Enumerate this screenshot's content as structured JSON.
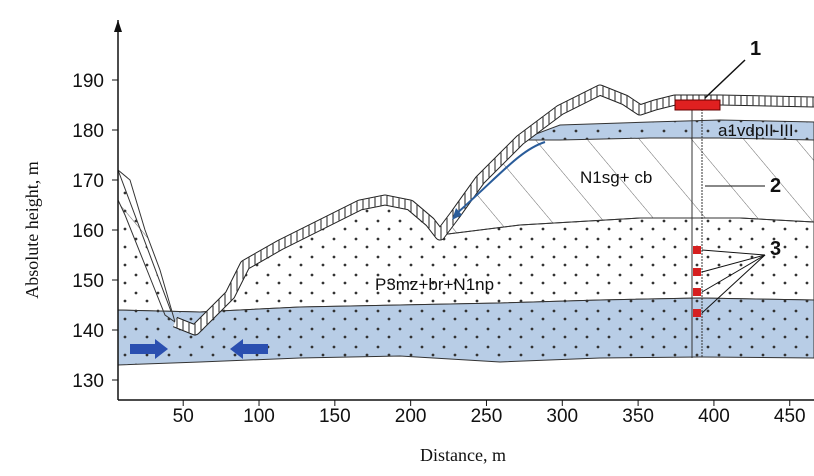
{
  "x_axis": {
    "label": "Distance, m",
    "lim": [
      7,
      466
    ],
    "ticks": [
      50,
      100,
      150,
      200,
      250,
      300,
      350,
      400,
      450
    ]
  },
  "y_axis": {
    "label": "Absolute height, m",
    "lim": [
      126,
      202
    ],
    "ticks": [
      130,
      140,
      150,
      160,
      170,
      180,
      190
    ]
  },
  "layers": {
    "upper_aquifer": "a1vdpII-III",
    "clay": "N1sg+ cb",
    "sand": "P3mz+br+N1np"
  },
  "callouts": {
    "1": "1",
    "2": "2",
    "3": "3"
  }
}
